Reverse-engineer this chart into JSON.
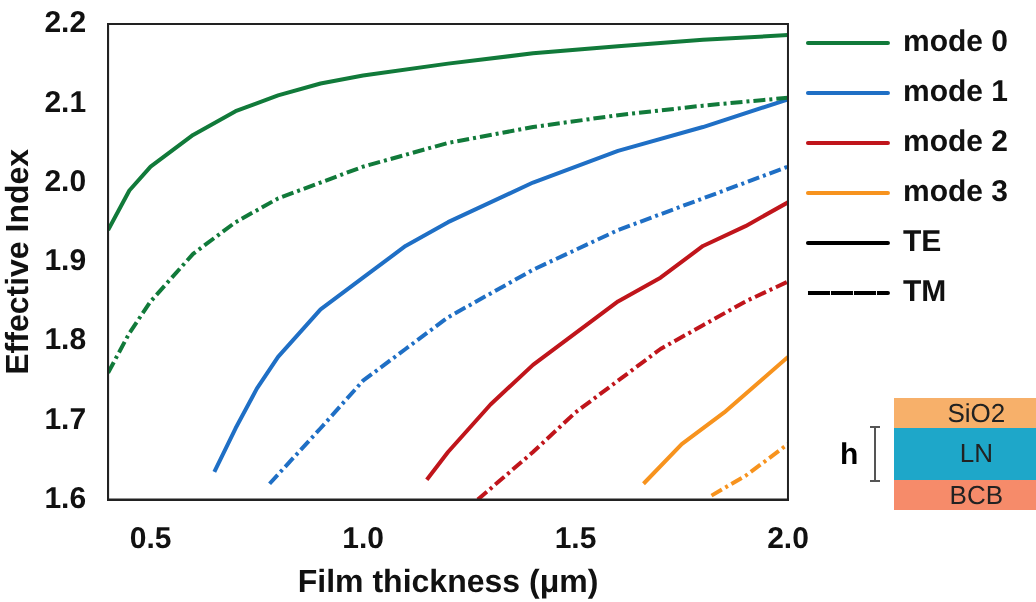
{
  "chart_data": {
    "type": "line",
    "xlabel": "Film thickness (μm)",
    "ylabel": "Effective Index",
    "xlim": [
      0.4,
      2.0
    ],
    "xticks": [
      {
        "value": 0.5,
        "label": "0.5"
      },
      {
        "value": 1.0,
        "label": "1.0"
      },
      {
        "value": 1.5,
        "label": "1.5"
      },
      {
        "value": 2.0,
        "label": "2.0"
      }
    ],
    "ylim": [
      1.6,
      2.2
    ],
    "yticks": [
      {
        "value": 1.6,
        "label": "1.6"
      },
      {
        "value": 1.7,
        "label": "1.7"
      },
      {
        "value": 1.8,
        "label": "1.8"
      },
      {
        "value": 1.9,
        "label": "1.9"
      },
      {
        "value": 2.0,
        "label": "2.0"
      },
      {
        "value": 2.1,
        "label": "2.1"
      },
      {
        "value": 2.2,
        "label": "2.2"
      }
    ],
    "grid": false,
    "legend": "top right",
    "marker": "none",
    "series": [
      {
        "name": "mode 0",
        "color": "#117a3a",
        "line_style": "solid",
        "x": [
          0.4,
          0.45,
          0.5,
          0.6,
          0.7,
          0.8,
          0.9,
          1.0,
          1.2,
          1.4,
          1.6,
          1.8,
          2.0
        ],
        "values": [
          1.94,
          1.99,
          2.02,
          2.06,
          2.09,
          2.11,
          2.125,
          2.135,
          2.15,
          2.163,
          2.172,
          2.18,
          2.186
        ]
      },
      {
        "color": "#117a3a",
        "line_style": "dashed",
        "x": [
          0.4,
          0.45,
          0.5,
          0.6,
          0.7,
          0.8,
          0.9,
          1.0,
          1.2,
          1.4,
          1.6,
          1.8,
          2.0
        ],
        "values": [
          1.76,
          1.81,
          1.85,
          1.91,
          1.95,
          1.98,
          2.0,
          2.02,
          2.05,
          2.07,
          2.085,
          2.097,
          2.107
        ]
      },
      {
        "name": "mode 1",
        "color": "#1f6fc5",
        "line_style": "solid",
        "x": [
          0.65,
          0.7,
          0.75,
          0.8,
          0.9,
          1.0,
          1.1,
          1.2,
          1.4,
          1.6,
          1.8,
          2.0
        ],
        "values": [
          1.635,
          1.69,
          1.74,
          1.78,
          1.84,
          1.88,
          1.92,
          1.95,
          2.0,
          2.04,
          2.07,
          2.105
        ]
      },
      {
        "color": "#1f6fc5",
        "line_style": "dashed",
        "x": [
          0.78,
          0.9,
          1.0,
          1.1,
          1.2,
          1.4,
          1.6,
          1.8,
          2.0
        ],
        "values": [
          1.62,
          1.69,
          1.75,
          1.79,
          1.83,
          1.89,
          1.94,
          1.98,
          2.02
        ]
      },
      {
        "name": "mode 2",
        "color": "#c0151b",
        "line_style": "solid",
        "x": [
          1.15,
          1.2,
          1.3,
          1.4,
          1.5,
          1.6,
          1.7,
          1.8,
          1.9,
          2.0
        ],
        "values": [
          1.625,
          1.66,
          1.72,
          1.77,
          1.81,
          1.85,
          1.88,
          1.92,
          1.945,
          1.975
        ]
      },
      {
        "color": "#c0151b",
        "line_style": "dashed",
        "x": [
          1.27,
          1.4,
          1.5,
          1.6,
          1.7,
          1.8,
          1.9,
          2.0
        ],
        "values": [
          1.6,
          1.66,
          1.71,
          1.75,
          1.79,
          1.82,
          1.85,
          1.875
        ]
      },
      {
        "name": "mode 3",
        "color": "#f7931e",
        "line_style": "solid",
        "x": [
          1.66,
          1.75,
          1.85,
          2.0
        ],
        "values": [
          1.62,
          1.67,
          1.71,
          1.78
        ]
      },
      {
        "color": "#f7931e",
        "line_style": "dashed",
        "x": [
          1.82,
          1.9,
          2.0
        ],
        "values": [
          1.605,
          1.63,
          1.67
        ]
      },
      {
        "name": "TE",
        "color": "#000000",
        "line_style": "solid"
      },
      {
        "name": "TM",
        "color": "#000000",
        "line_style": "dashed"
      }
    ],
    "annotations": [
      "SiO2",
      "LN",
      "BCB",
      "h"
    ]
  }
}
